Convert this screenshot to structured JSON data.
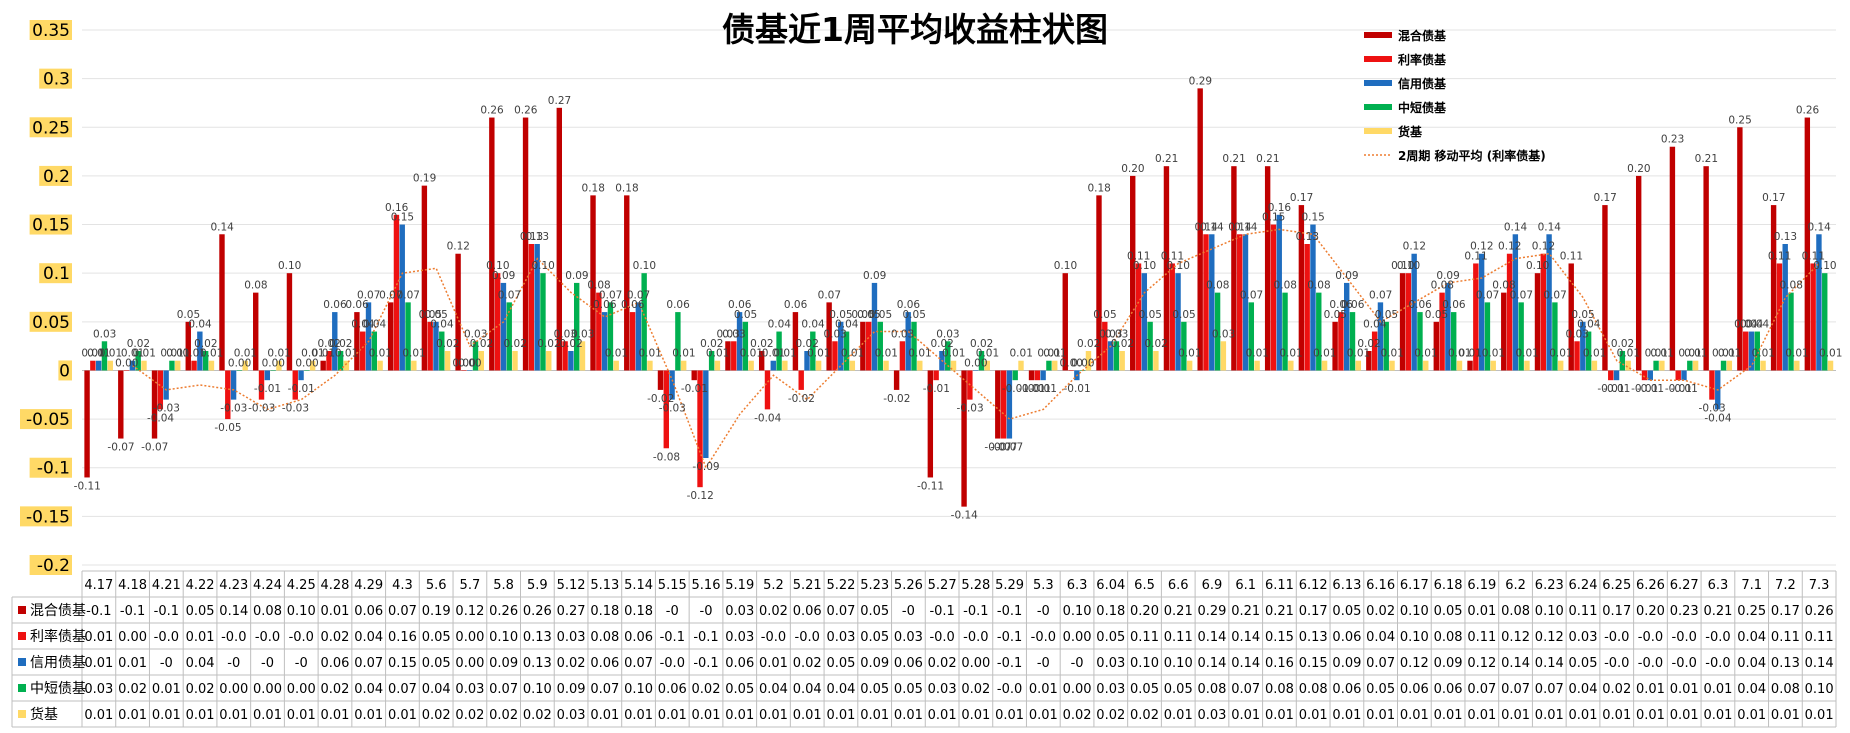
{
  "chart_data": {
    "type": "bar",
    "title": "债基近1周平均收益柱状图",
    "ylim": [
      -0.2,
      0.35
    ],
    "yticks": [
      -0.2,
      -0.15,
      -0.1,
      -0.05,
      0,
      0.05,
      0.1,
      0.15,
      0.2,
      0.25,
      0.3,
      0.35
    ],
    "ytick_labels": [
      "-0.2",
      "-0.15",
      "-0.1",
      "-0.05",
      "0",
      "0.05",
      "0.1",
      "0.15",
      "0.2",
      "0.25",
      "0.3",
      "0.35"
    ],
    "grid": true,
    "legend_position": "top-right",
    "categories": [
      "4.17",
      "4.18",
      "4.21",
      "4.22",
      "4.23",
      "4.24",
      "4.25",
      "4.28",
      "4.29",
      "4.3",
      "5.6",
      "5.7",
      "5.8",
      "5.9",
      "5.12",
      "5.13",
      "5.14",
      "5.15",
      "5.16",
      "5.19",
      "5.2",
      "5.21",
      "5.22",
      "5.23",
      "5.26",
      "5.27",
      "5.28",
      "5.29",
      "5.3",
      "6.3",
      "6.04",
      "6.5",
      "6.6",
      "6.9",
      "6.1",
      "6.11",
      "6.12",
      "6.13",
      "6.16",
      "6.17",
      "6.18",
      "6.19",
      "6.2",
      "6.23",
      "6.24",
      "6.25",
      "6.26",
      "6.27",
      "6.3",
      "7.1",
      "7.2",
      "7.3"
    ],
    "series": [
      {
        "name": "混合债基",
        "color": "#c00000",
        "values": [
          -0.11,
          -0.07,
          -0.07,
          0.05,
          0.14,
          0.08,
          0.1,
          0.01,
          0.06,
          0.07,
          0.19,
          0.12,
          0.26,
          0.26,
          0.27,
          0.18,
          0.18,
          -0.02,
          -0.01,
          0.03,
          0.02,
          0.06,
          0.07,
          0.05,
          -0.02,
          -0.11,
          -0.14,
          -0.07,
          -0.01,
          0.1,
          0.18,
          0.2,
          0.21,
          0.29,
          0.21,
          0.21,
          0.17,
          0.05,
          0.02,
          0.1,
          0.05,
          0.01,
          0.08,
          0.1,
          0.11,
          0.17,
          0.2,
          0.23,
          0.21,
          0.25,
          0.17,
          0.26
        ],
        "table": [
          "-0.1",
          "-0.1",
          "-0.1",
          "0.05",
          "0.14",
          "0.08",
          "0.10",
          "0.01",
          "0.06",
          "0.07",
          "0.19",
          "0.12",
          "0.26",
          "0.26",
          "0.27",
          "0.18",
          "0.18",
          "-0",
          "-0",
          "0.03",
          "0.02",
          "0.06",
          "0.07",
          "0.05",
          "-0",
          "-0.1",
          "-0.1",
          "-0.1",
          "-0",
          "0.10",
          "0.18",
          "0.20",
          "0.21",
          "0.29",
          "0.21",
          "0.21",
          "0.17",
          "0.05",
          "0.02",
          "0.10",
          "0.05",
          "0.01",
          "0.08",
          "0.10",
          "0.11",
          "0.17",
          "0.20",
          "0.23",
          "0.21",
          "0.25",
          "0.17",
          "0.26"
        ]
      },
      {
        "name": "利率债基",
        "color": "#ee1111",
        "values": [
          0.01,
          0.0,
          -0.04,
          0.01,
          -0.05,
          -0.03,
          -0.03,
          0.02,
          0.04,
          0.16,
          0.05,
          0.0,
          0.1,
          0.13,
          0.03,
          0.08,
          0.06,
          -0.08,
          -0.12,
          0.03,
          -0.04,
          -0.02,
          0.03,
          0.05,
          0.03,
          -0.01,
          -0.03,
          -0.07,
          -0.01,
          0.0,
          0.05,
          0.11,
          0.11,
          0.14,
          0.14,
          0.15,
          0.13,
          0.06,
          0.04,
          0.1,
          0.08,
          0.11,
          0.12,
          0.12,
          0.03,
          -0.01,
          -0.01,
          -0.01,
          -0.03,
          0.04,
          0.11,
          0.11
        ],
        "table": [
          "0.01",
          "0.00",
          "-0.0",
          "0.01",
          "-0.0",
          "-0.0",
          "-0.0",
          "0.02",
          "0.04",
          "0.16",
          "0.05",
          "0.00",
          "0.10",
          "0.13",
          "0.03",
          "0.08",
          "0.06",
          "-0.1",
          "-0.1",
          "0.03",
          "-0.0",
          "-0.0",
          "0.03",
          "0.05",
          "0.03",
          "-0.0",
          "-0.0",
          "-0.1",
          "-0.0",
          "0.00",
          "0.05",
          "0.11",
          "0.11",
          "0.14",
          "0.14",
          "0.15",
          "0.13",
          "0.06",
          "0.04",
          "0.10",
          "0.08",
          "0.11",
          "0.12",
          "0.12",
          "0.03",
          "-0.0",
          "-0.0",
          "-0.0",
          "-0.0",
          "0.04",
          "0.11",
          "0.11"
        ]
      },
      {
        "name": "信用债基",
        "color": "#1f6dbf",
        "values": [
          0.01,
          0.01,
          -0.03,
          0.04,
          -0.03,
          -0.01,
          -0.01,
          0.06,
          0.07,
          0.15,
          0.05,
          0.0,
          0.09,
          0.13,
          0.02,
          0.06,
          0.07,
          -0.03,
          -0.09,
          0.06,
          0.01,
          0.02,
          0.05,
          0.09,
          0.06,
          0.02,
          0.0,
          -0.07,
          -0.01,
          -0.01,
          0.03,
          0.1,
          0.1,
          0.14,
          0.14,
          0.16,
          0.15,
          0.09,
          0.07,
          0.12,
          0.09,
          0.12,
          0.14,
          0.14,
          0.05,
          -0.01,
          -0.01,
          -0.01,
          -0.04,
          0.04,
          0.13,
          0.14
        ],
        "table": [
          "0.01",
          "0.01",
          "-0",
          "0.04",
          "-0",
          "-0",
          "-0",
          "0.06",
          "0.07",
          "0.15",
          "0.05",
          "0.00",
          "0.09",
          "0.13",
          "0.02",
          "0.06",
          "0.07",
          "-0.0",
          "-0.1",
          "0.06",
          "0.01",
          "0.02",
          "0.05",
          "0.09",
          "0.06",
          "0.02",
          "0.00",
          "-0.1",
          "-0",
          "-0",
          "0.03",
          "0.10",
          "0.10",
          "0.14",
          "0.14",
          "0.16",
          "0.15",
          "0.09",
          "0.07",
          "0.12",
          "0.09",
          "0.12",
          "0.14",
          "0.14",
          "0.05",
          "-0.0",
          "-0.0",
          "-0.0",
          "-0.0",
          "0.04",
          "0.13",
          "0.14"
        ]
      },
      {
        "name": "中短债基",
        "color": "#00b050",
        "values": [
          0.03,
          0.02,
          0.01,
          0.02,
          0.0,
          0.0,
          0.0,
          0.02,
          0.04,
          0.07,
          0.04,
          0.03,
          0.07,
          0.1,
          0.09,
          0.07,
          0.1,
          0.06,
          0.02,
          0.05,
          0.04,
          0.04,
          0.04,
          0.05,
          0.05,
          0.03,
          0.02,
          -0.01,
          0.01,
          0.0,
          0.03,
          0.05,
          0.05,
          0.08,
          0.07,
          0.08,
          0.08,
          0.06,
          0.05,
          0.06,
          0.06,
          0.07,
          0.07,
          0.07,
          0.04,
          0.02,
          0.01,
          0.01,
          0.01,
          0.04,
          0.08,
          0.1
        ],
        "table": [
          "0.03",
          "0.02",
          "0.01",
          "0.02",
          "0.00",
          "0.00",
          "0.00",
          "0.02",
          "0.04",
          "0.07",
          "0.04",
          "0.03",
          "0.07",
          "0.10",
          "0.09",
          "0.07",
          "0.10",
          "0.06",
          "0.02",
          "0.05",
          "0.04",
          "0.04",
          "0.04",
          "0.05",
          "0.05",
          "0.03",
          "0.02",
          "-0.0",
          "0.01",
          "0.00",
          "0.03",
          "0.05",
          "0.05",
          "0.08",
          "0.07",
          "0.08",
          "0.08",
          "0.06",
          "0.05",
          "0.06",
          "0.06",
          "0.07",
          "0.07",
          "0.07",
          "0.04",
          "0.02",
          "0.01",
          "0.01",
          "0.01",
          "0.04",
          "0.08",
          "0.10"
        ]
      },
      {
        "name": "货基",
        "color": "#ffd966",
        "values": [
          0.01,
          0.01,
          0.01,
          0.01,
          0.01,
          0.01,
          0.01,
          0.01,
          0.01,
          0.01,
          0.02,
          0.02,
          0.02,
          0.02,
          0.03,
          0.01,
          0.01,
          0.01,
          0.01,
          0.01,
          0.01,
          0.01,
          0.01,
          0.01,
          0.01,
          0.01,
          0.01,
          0.01,
          0.01,
          0.02,
          0.02,
          0.02,
          0.01,
          0.03,
          0.01,
          0.01,
          0.01,
          0.01,
          0.01,
          0.01,
          0.01,
          0.01,
          0.01,
          0.01,
          0.01,
          0.01,
          0.01,
          0.01,
          0.01,
          0.01,
          0.01,
          0.01
        ],
        "table": [
          "0.01",
          "0.01",
          "0.01",
          "0.01",
          "0.01",
          "0.01",
          "0.01",
          "0.01",
          "0.01",
          "0.01",
          "0.02",
          "0.02",
          "0.02",
          "0.02",
          "0.03",
          "0.01",
          "0.01",
          "0.01",
          "0.01",
          "0.01",
          "0.01",
          "0.01",
          "0.01",
          "0.01",
          "0.01",
          "0.01",
          "0.01",
          "0.01",
          "0.01",
          "0.02",
          "0.02",
          "0.02",
          "0.01",
          "0.03",
          "0.01",
          "0.01",
          "0.01",
          "0.01",
          "0.01",
          "0.01",
          "0.01",
          "0.01",
          "0.01",
          "0.01",
          "0.01",
          "0.01",
          "0.01",
          "0.01",
          "0.01",
          "0.01",
          "0.01",
          "0.01"
        ]
      }
    ],
    "trendline": {
      "name": "2周期 移动平均 (利率债基)",
      "color": "#ed7d31",
      "style": "dotted"
    },
    "ytick_highlight_color": "#ffd966"
  }
}
